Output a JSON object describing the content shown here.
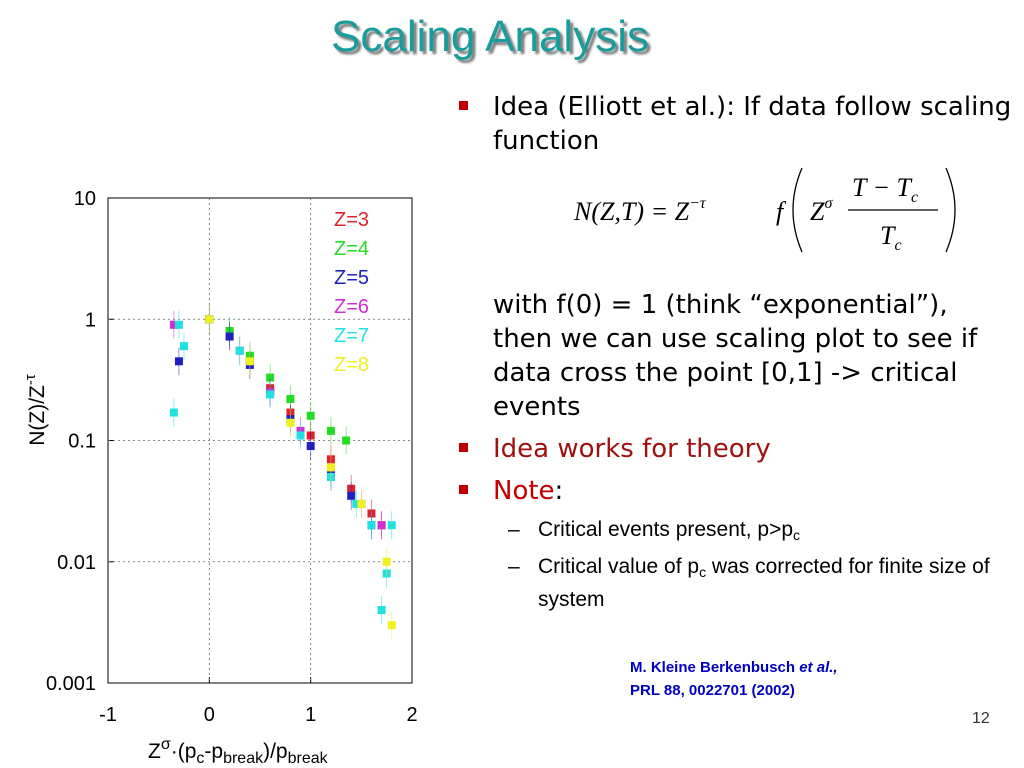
{
  "title": "Scaling Analysis",
  "bullets": [
    {
      "text": "Idea (Elliott et al.): If data follow scaling function",
      "continuation": "with f(0) = 1 (think “exponential”), then we can use scaling plot to see if data cross the point [0,1] -> critical events"
    },
    {
      "text": "Idea works for theory"
    },
    {
      "text": "Note",
      "suffix": ":"
    }
  ],
  "formula": {
    "lhs": "N(Z,T) = Z",
    "lhs_sup": "−τ",
    "func": "f",
    "inner": "Z",
    "inner_sup": "σ",
    "numerator": "T − T",
    "numerator_sub": "c",
    "denominator": "T",
    "denominator_sub": "c"
  },
  "sub_bullets": [
    {
      "text": "Critical events present, p>p",
      "sub": "c"
    },
    {
      "text": "Critical value of p",
      "sub": "c",
      "after": " was corrected for finite size of system"
    }
  ],
  "citation": {
    "authors": "M. Kleine Berkenbusch",
    "etal": "et al.,",
    "journal": "PRL 88, 0022701 (2002)"
  },
  "page_number": "12",
  "chart_data": {
    "type": "scatter",
    "y_label": {
      "base": "N(Z)/Z",
      "sup": "-τ"
    },
    "x_label": [
      "Z",
      "σ",
      "·(p",
      "c",
      "-p",
      "break",
      ")/p",
      "break"
    ],
    "xlim": [
      -1,
      2
    ],
    "xticks": [
      -1,
      0,
      1,
      2
    ],
    "ylim": [
      0.001,
      10
    ],
    "yticks": [
      0.001,
      0.01,
      0.1,
      1,
      10
    ],
    "yscale": "log",
    "grid": true,
    "legend": "upper right",
    "series": [
      {
        "name": "Z=3",
        "color": "#e0202a",
        "x": [
          0,
          0.2,
          0.4,
          0.6,
          0.8,
          1.0,
          1.2,
          1.4,
          1.6,
          1.7
        ],
        "values": [
          1.0,
          0.75,
          0.45,
          0.27,
          0.17,
          0.11,
          0.07,
          0.04,
          0.025,
          0.02
        ]
      },
      {
        "name": "Z=4",
        "color": "#22dd22",
        "x": [
          0,
          0.2,
          0.4,
          0.6,
          0.8,
          1.0,
          1.2,
          1.35
        ],
        "values": [
          1.0,
          0.8,
          0.5,
          0.33,
          0.22,
          0.16,
          0.12,
          0.1
        ]
      },
      {
        "name": "Z=5",
        "color": "#2020c0",
        "x": [
          -0.3,
          0,
          0.2,
          0.4,
          0.6,
          0.8,
          1.0,
          1.2,
          1.4,
          1.6
        ],
        "values": [
          0.45,
          1.0,
          0.72,
          0.42,
          0.25,
          0.15,
          0.09,
          0.055,
          0.035,
          0.02
        ]
      },
      {
        "name": "Z=6",
        "color": "#d030d0",
        "x": [
          -0.35,
          0,
          0.3,
          0.6,
          0.9,
          1.2,
          1.5,
          1.7
        ],
        "values": [
          0.9,
          1.0,
          0.55,
          0.25,
          0.12,
          0.05,
          0.03,
          0.02
        ]
      },
      {
        "name": "Z=7",
        "color": "#20e0e0",
        "x": [
          -0.35,
          -0.3,
          -0.25,
          0,
          0.3,
          0.6,
          0.9,
          1.2,
          1.45,
          1.6,
          1.7,
          1.75,
          1.8
        ],
        "values": [
          0.17,
          0.9,
          0.6,
          1.0,
          0.55,
          0.24,
          0.11,
          0.05,
          0.03,
          0.02,
          0.004,
          0.008,
          0.02
        ]
      },
      {
        "name": "Z=8",
        "color": "#f0f020",
        "x": [
          0,
          0.4,
          0.8,
          1.2,
          1.5,
          1.75,
          1.8
        ],
        "values": [
          1.0,
          0.45,
          0.14,
          0.06,
          0.03,
          0.01,
          0.003
        ]
      }
    ]
  }
}
